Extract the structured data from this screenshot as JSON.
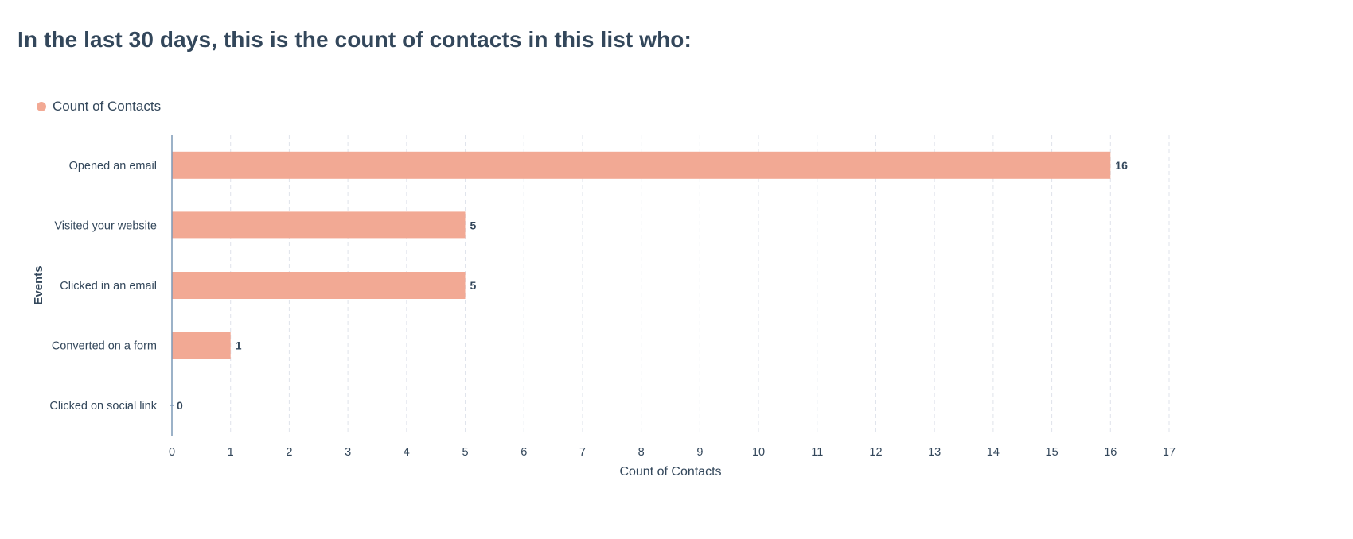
{
  "page": {
    "title": "In the last 30 days, this is the count of contacts in this list who:"
  },
  "chart_data": {
    "type": "bar",
    "orientation": "horizontal",
    "categories": [
      "Opened an email",
      "Visited your website",
      "Clicked in an email",
      "Converted on a form",
      "Clicked on social link"
    ],
    "series": [
      {
        "name": "Count of Contacts",
        "values": [
          16,
          5,
          5,
          1,
          0
        ],
        "color": "#f2a994"
      }
    ],
    "xlabel": "Count of Contacts",
    "ylabel": "Events",
    "xlim": [
      0,
      17
    ],
    "x_ticks": [
      "0",
      "1",
      "2",
      "3",
      "4",
      "5",
      "6",
      "7",
      "8",
      "9",
      "10",
      "11",
      "12",
      "13",
      "14",
      "15",
      "16",
      "17"
    ],
    "grid": "vertical-dashed",
    "data_labels": [
      "16",
      "5",
      "5",
      "1",
      "0"
    ],
    "legend_position": "top-left"
  },
  "colors": {
    "text": "#33475b",
    "grid": "#dfe3eb",
    "axis": "#7c98b6"
  }
}
